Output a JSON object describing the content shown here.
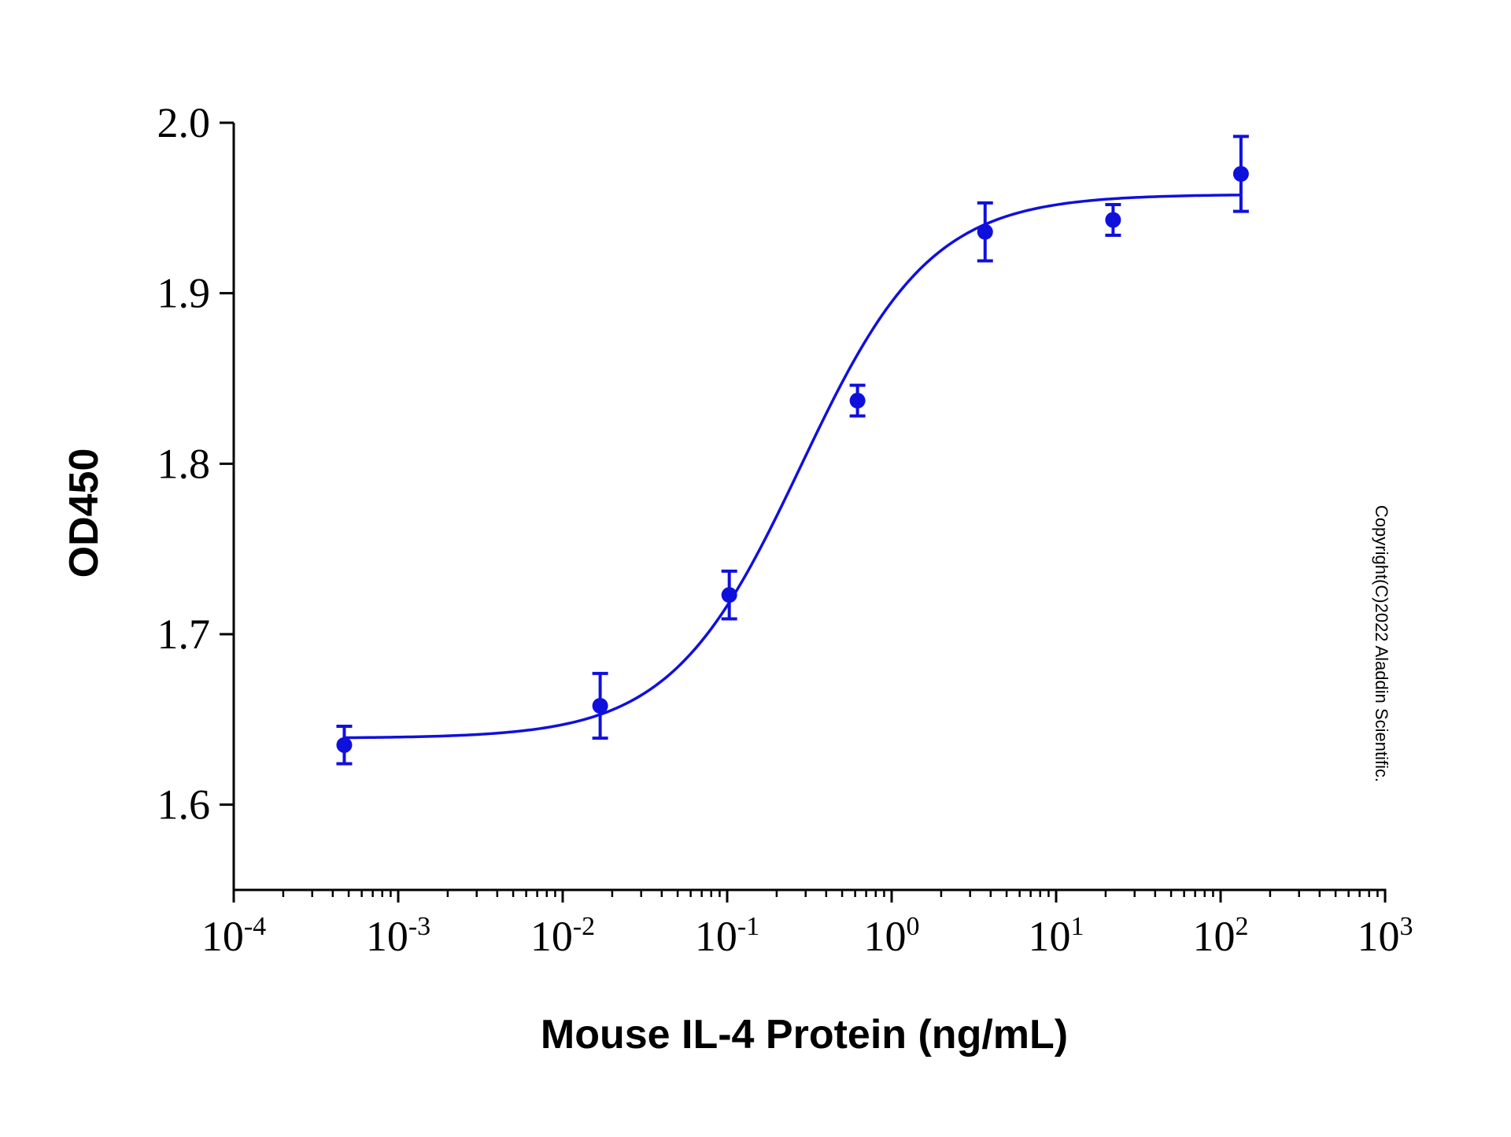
{
  "chart_data": {
    "type": "scatter",
    "xlabel": "Mouse IL-4 Protein (ng/mL)",
    "ylabel": "OD450",
    "x_scale": "log",
    "xlim": [
      0.0001,
      1000
    ],
    "ylim": [
      1.55,
      2.0
    ],
    "y_ticks": [
      "1.6",
      "1.7",
      "1.8",
      "1.9",
      "2.0"
    ],
    "x_ticks": [
      {
        "base": "10",
        "exp": "-4"
      },
      {
        "base": "10",
        "exp": "-3"
      },
      {
        "base": "10",
        "exp": "-2"
      },
      {
        "base": "10",
        "exp": "-1"
      },
      {
        "base": "10",
        "exp": "0"
      },
      {
        "base": "10",
        "exp": "1"
      },
      {
        "base": "10",
        "exp": "2"
      },
      {
        "base": "10",
        "exp": "3"
      }
    ],
    "series": [
      {
        "color": "#1010dd",
        "points": [
          {
            "x": 0.00047,
            "y": 1.635,
            "err": 0.011
          },
          {
            "x": 0.0169,
            "y": 1.658,
            "err": 0.019
          },
          {
            "x": 0.103,
            "y": 1.723,
            "err": 0.014
          },
          {
            "x": 0.62,
            "y": 1.837,
            "err": 0.009
          },
          {
            "x": 3.7,
            "y": 1.936,
            "err": 0.017
          },
          {
            "x": 22.2,
            "y": 1.943,
            "err": 0.009
          },
          {
            "x": 133,
            "y": 1.97,
            "err": 0.022
          }
        ],
        "fit": {
          "model": "4PL",
          "bottom": 1.639,
          "top": 1.958,
          "ec50": 0.28,
          "hill": 1.1
        }
      }
    ],
    "annotation": "Copyright(C)2022 Aladdin Scientific."
  }
}
